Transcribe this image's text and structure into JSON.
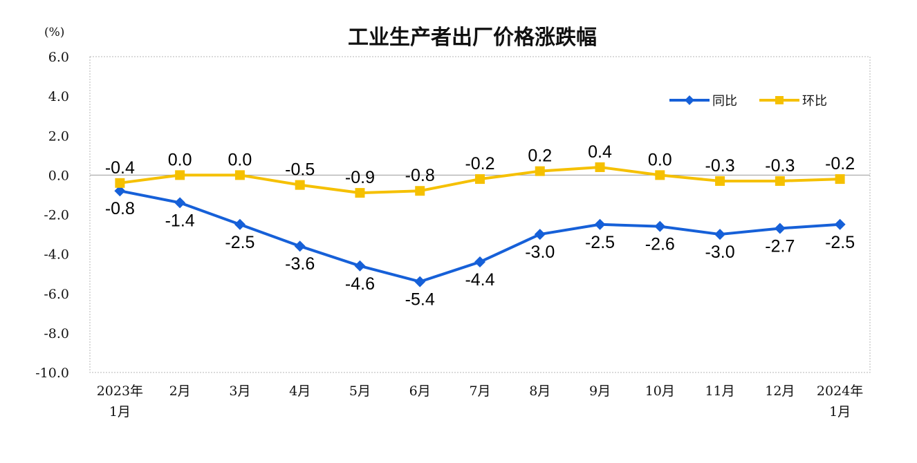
{
  "chart_data": {
    "type": "line",
    "title": "工业生产者出厂价格涨跌幅",
    "unit_label": "(%)",
    "ylim": [
      -10.0,
      6.0
    ],
    "yticks": [
      "6.0",
      "4.0",
      "2.0",
      "0.0",
      "-2.0",
      "-4.0",
      "-6.0",
      "-8.0",
      "-10.0"
    ],
    "ytick_values": [
      6,
      4,
      2,
      0,
      -2,
      -4,
      -6,
      -8,
      -10
    ],
    "categories": [
      [
        "2023年",
        "1月"
      ],
      [
        "2月"
      ],
      [
        "3月"
      ],
      [
        "4月"
      ],
      [
        "5月"
      ],
      [
        "6月"
      ],
      [
        "7月"
      ],
      [
        "8月"
      ],
      [
        "9月"
      ],
      [
        "10月"
      ],
      [
        "11月"
      ],
      [
        "12月"
      ],
      [
        "2024年",
        "1月"
      ]
    ],
    "grid": "dotted horizontal and vertical border",
    "legend_position": "top-right",
    "series": [
      {
        "name": "同比",
        "color": "#1660d8",
        "marker": "diamond",
        "values": [
          -0.8,
          -1.4,
          -2.5,
          -3.6,
          -4.6,
          -5.4,
          -4.4,
          -3.0,
          -2.5,
          -2.6,
          -3.0,
          -2.7,
          -2.5
        ],
        "labels": [
          "-0.8",
          "-1.4",
          "-2.5",
          "-3.6",
          "-4.6",
          "-5.4",
          "-4.4",
          "-3.0",
          "-2.5",
          "-2.6",
          "-3.0",
          "-2.7",
          "-2.5"
        ],
        "label_position": "below"
      },
      {
        "name": "环比",
        "color": "#f5c000",
        "marker": "square",
        "values": [
          -0.4,
          0.0,
          0.0,
          -0.5,
          -0.9,
          -0.8,
          -0.2,
          0.2,
          0.4,
          0.0,
          -0.3,
          -0.3,
          -0.2
        ],
        "labels": [
          "-0.4",
          "0.0",
          "0.0",
          "-0.5",
          "-0.9",
          "-0.8",
          "-0.2",
          "0.2",
          "0.4",
          "0.0",
          "-0.3",
          "-0.3",
          "-0.2"
        ],
        "label_position": "above"
      }
    ]
  }
}
